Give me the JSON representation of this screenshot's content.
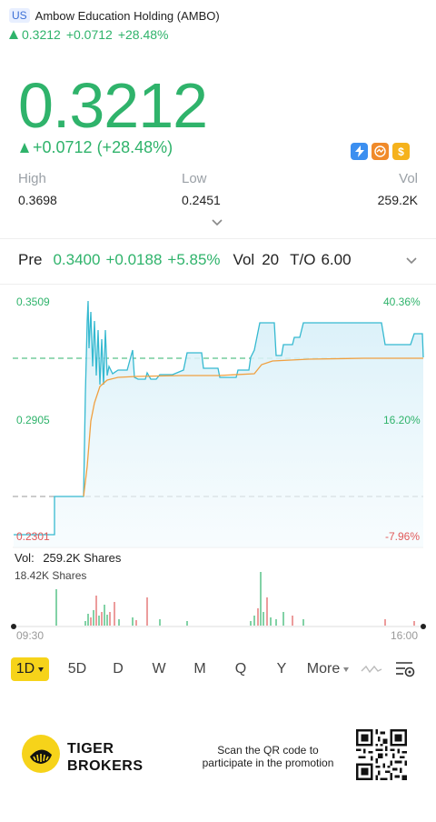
{
  "header": {
    "market": "US",
    "title": "Ambow Education Holding (AMBO)",
    "price": "0.3212",
    "change": "+0.0712",
    "change_pct": "+28.48%"
  },
  "quote": {
    "price": "0.3212",
    "change_text": "+0.0712 (+28.48%)"
  },
  "badges": [
    {
      "name": "flash-icon",
      "glyph": "⚡"
    },
    {
      "name": "trend-icon",
      "glyph": "↯"
    },
    {
      "name": "dollar-icon",
      "glyph": "$"
    }
  ],
  "stats": {
    "high_label": "High",
    "high_value": "0.3698",
    "low_label": "Low",
    "low_value": "0.2451",
    "vol_label": "Vol",
    "vol_value": "259.2K"
  },
  "premarket": {
    "label": "Pre",
    "price": "0.3400",
    "change": "+0.0188",
    "change_pct": "+5.85%",
    "vol_label": "Vol",
    "vol_value": "20",
    "to_label": "T/O",
    "to_value": "6.00"
  },
  "chart_data": {
    "type": "line",
    "y_left_ticks": [
      "0.3509",
      "0.2905",
      "0.2301"
    ],
    "y_right_ticks": [
      "40.36%",
      "16.20%",
      "-7.96%"
    ],
    "x_start": "09:30",
    "x_end": "16:00",
    "colors": {
      "price": "#35b9d0",
      "avg": "#f0a040",
      "up": "#2fb36b",
      "down": "#e05a5a"
    },
    "volume_label": "Vol:",
    "volume_value": "259.2K Shares",
    "volume_axis_max": "18.42K Shares"
  },
  "tabs": [
    "1D",
    "5D",
    "D",
    "W",
    "M",
    "Q",
    "Y",
    "More"
  ],
  "promo": {
    "brand_line1": "TIGER",
    "brand_line2": "BROKERS",
    "scan_line1": "Scan the QR code to",
    "scan_line2": "participate in the promotion"
  }
}
